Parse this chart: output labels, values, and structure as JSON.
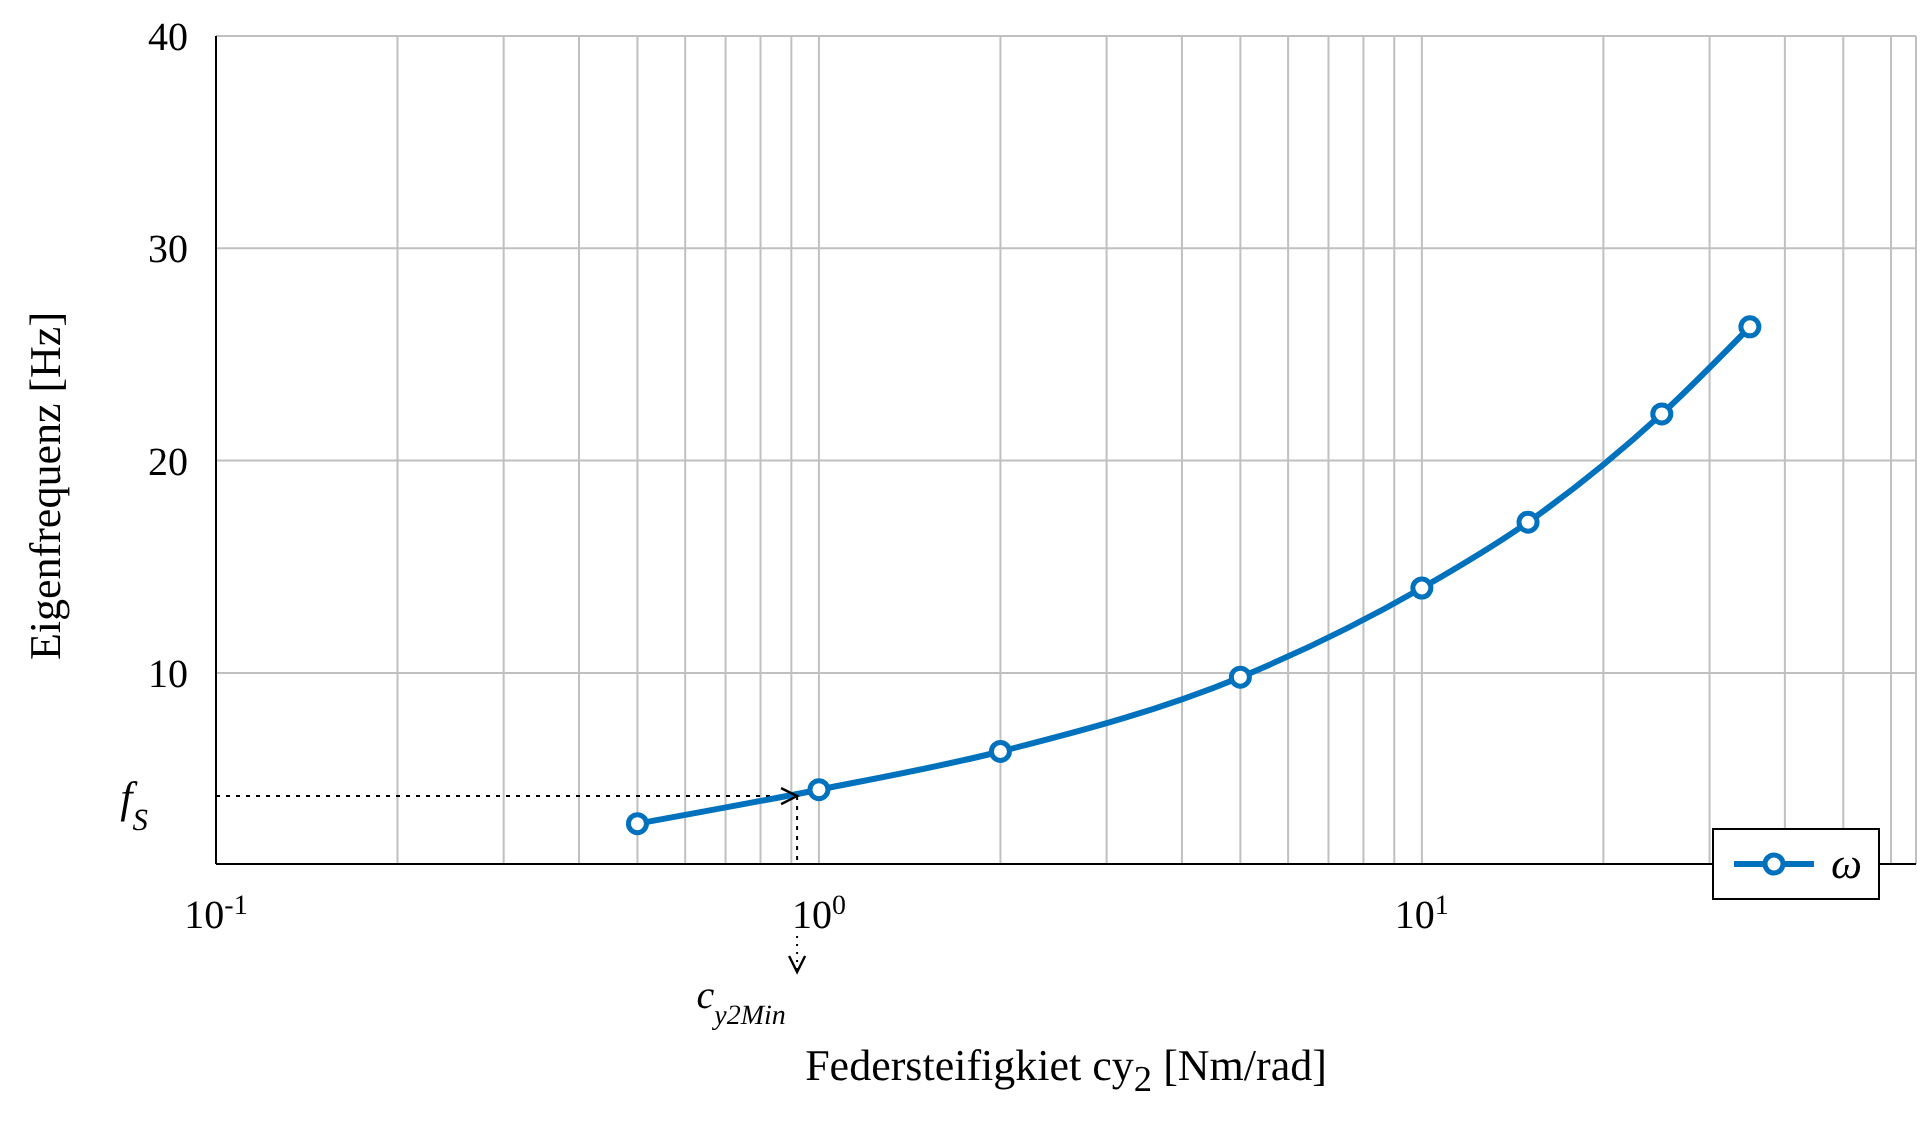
{
  "chart_data": {
    "type": "line",
    "xlabel": "Federsteifigkiet cy$_{2}$ [Nm/rad]",
    "ylabel": "Eigenfrequenz [Hz]",
    "x": [
      0.5,
      1,
      2,
      5,
      10,
      15,
      25,
      35
    ],
    "series": [
      {
        "name": "ω",
        "color": "#0072bd",
        "values": [
          2.9,
          4.5,
          6.3,
          9.8,
          14.0,
          17.1,
          22.2,
          26.3
        ]
      }
    ],
    "log": "x",
    "xlim": [
      0.1,
      66
    ],
    "ylim": [
      1,
      40
    ],
    "xticks": [
      {
        "value": 0.1,
        "label": "10$^{-1}$"
      },
      {
        "value": 0.2,
        "label": null
      },
      {
        "value": 0.3,
        "label": null
      },
      {
        "value": 0.4,
        "label": null
      },
      {
        "value": 0.5,
        "label": null
      },
      {
        "value": 0.6,
        "label": null
      },
      {
        "value": 0.7,
        "label": null
      },
      {
        "value": 0.8,
        "label": null
      },
      {
        "value": 0.9,
        "label": null
      },
      {
        "value": 1,
        "label": "10$^{0}$"
      },
      {
        "value": 2,
        "label": null
      },
      {
        "value": 3,
        "label": null
      },
      {
        "value": 4,
        "label": null
      },
      {
        "value": 5,
        "label": null
      },
      {
        "value": 6,
        "label": null
      },
      {
        "value": 7,
        "label": null
      },
      {
        "value": 8,
        "label": null
      },
      {
        "value": 9,
        "label": null
      },
      {
        "value": 10,
        "label": "10$^{1}$"
      },
      {
        "value": 20,
        "label": null
      },
      {
        "value": 30,
        "label": null
      },
      {
        "value": 40,
        "label": null
      },
      {
        "value": 50,
        "label": null
      },
      {
        "value": 60,
        "label": null
      }
    ],
    "yticks": [
      10,
      20,
      30,
      40
    ],
    "ref_lines": [
      {
        "axis": "y",
        "value": 4.2,
        "label": "f$_{S}$",
        "line_style": "dotted",
        "color": "#000000"
      },
      {
        "axis": "x",
        "value": 0.92,
        "label": "c$_{y2Min}$",
        "line_style": "dotted",
        "color": "#000000"
      }
    ],
    "grid": true,
    "legend": "bottom right",
    "marker": "circle",
    "line_style": "solid"
  }
}
